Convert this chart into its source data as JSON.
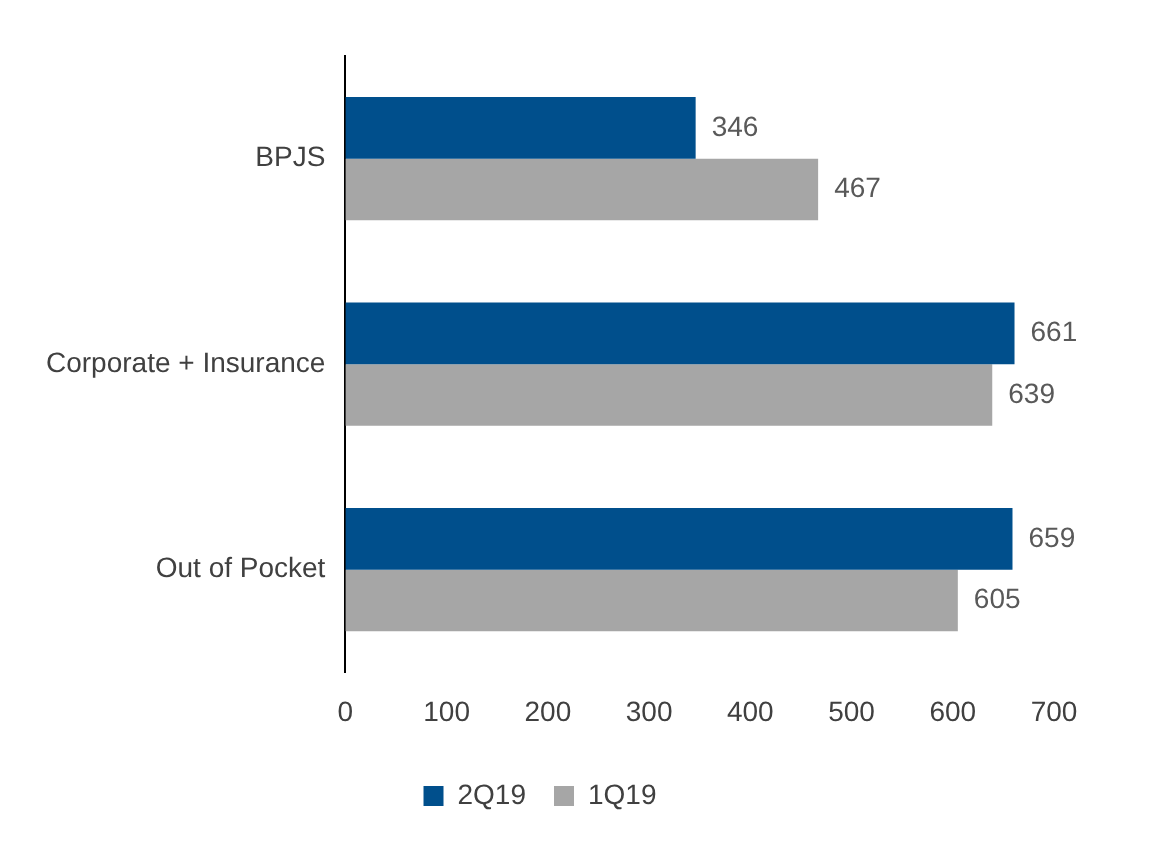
{
  "chart_data": {
    "type": "bar",
    "orientation": "horizontal",
    "categories": [
      "BPJS",
      "Corporate + Insurance",
      "Out of Pocket"
    ],
    "series": [
      {
        "name": "2Q19",
        "color": "#004f8c",
        "values": [
          346,
          661,
          659
        ]
      },
      {
        "name": "1Q19",
        "color": "#a6a6a6",
        "values": [
          467,
          639,
          605
        ]
      }
    ],
    "xlim": [
      0,
      700
    ],
    "xticks": [
      0,
      100,
      200,
      300,
      400,
      500,
      600,
      700
    ],
    "data_labels": true,
    "grid": false,
    "legend": "bottom"
  }
}
